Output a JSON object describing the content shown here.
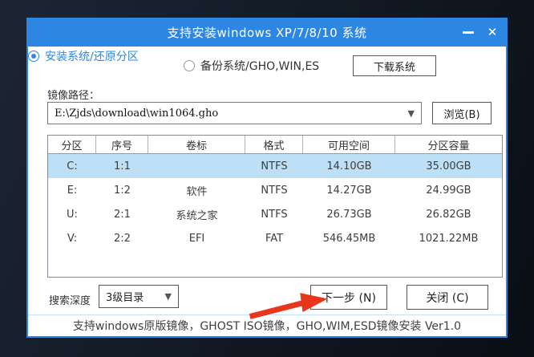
{
  "window": {
    "title": "支持安装windows XP/7/8/10 系统",
    "minimize_icon": "minimize",
    "close_icon": "✕"
  },
  "mode": {
    "install_label": "安装系统/还原分区",
    "backup_label": "备份系统/GHO,WIN,ES",
    "download_button": "下载系统"
  },
  "image_path": {
    "label": "镜像路径：",
    "value": "E:\\Zjds\\download\\win1064.gho",
    "dropdown_icon": "▼",
    "browse_button": "浏览(B)"
  },
  "partition_table": {
    "headers": [
      "分区",
      "序号",
      "卷标",
      "格式",
      "可用空间",
      "分区容量"
    ],
    "rows": [
      {
        "drive": "C:",
        "index": "1:1",
        "label": "",
        "format": "NTFS",
        "free": "14.10GB",
        "capacity": "35.00GB",
        "selected": true
      },
      {
        "drive": "E:",
        "index": "1:2",
        "label": "软件",
        "format": "NTFS",
        "free": "14.27GB",
        "capacity": "24.99GB",
        "selected": false
      },
      {
        "drive": "U:",
        "index": "2:1",
        "label": "系统之家",
        "format": "NTFS",
        "free": "26.73GB",
        "capacity": "26.82GB",
        "selected": false
      },
      {
        "drive": "V:",
        "index": "2:2",
        "label": "EFI",
        "format": "FAT",
        "free": "546.45MB",
        "capacity": "1021.22MB",
        "selected": false
      }
    ]
  },
  "bottom_controls": {
    "search_depth_label": "搜索深度",
    "search_depth_value": "3级目录",
    "dropdown_icon": "▼",
    "next_button": "下一步 (N)",
    "close_button": "关闭 (C)"
  },
  "status_bar": {
    "text": "支持windows原版镜像，GHOST ISO镜像，GHO,WIM,ESD镜像安装 Ver1.0"
  },
  "colors": {
    "accent": "#2e86e3",
    "selected_row": "#bde0f7",
    "arrow_red": "#e8351c"
  }
}
